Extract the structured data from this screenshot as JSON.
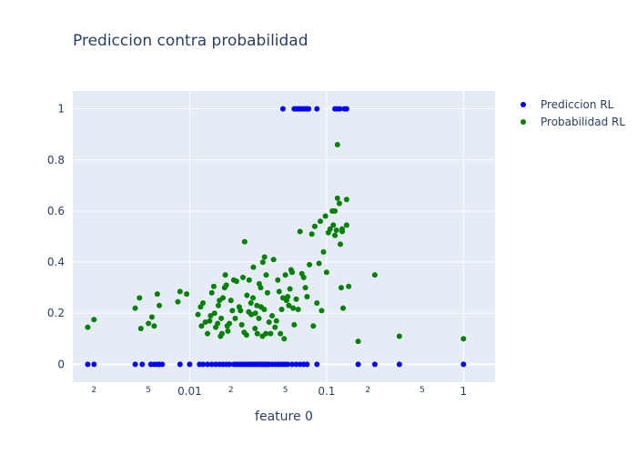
{
  "chart_data": {
    "type": "scatter",
    "title": "Prediccion contra probabilidad",
    "xlabel": "feature 0",
    "ylabel": "",
    "x_scale": "log",
    "xlim": [
      0.0014,
      1.7
    ],
    "ylim": [
      -0.07,
      1.07
    ],
    "x_tick_labels": [
      {
        "value": 0.002,
        "label": "2",
        "minor": true
      },
      {
        "value": 0.005,
        "label": "5",
        "minor": true
      },
      {
        "value": 0.01,
        "label": "0.01",
        "minor": false
      },
      {
        "value": 0.02,
        "label": "2",
        "minor": true
      },
      {
        "value": 0.05,
        "label": "5",
        "minor": true
      },
      {
        "value": 0.1,
        "label": "0.1",
        "minor": false
      },
      {
        "value": 0.2,
        "label": "2",
        "minor": true
      },
      {
        "value": 0.5,
        "label": "5",
        "minor": true
      },
      {
        "value": 1,
        "label": "1",
        "minor": false
      }
    ],
    "y_ticks": [
      0,
      0.2,
      0.4,
      0.6,
      0.8,
      1
    ],
    "y_tick_labels": [
      "0",
      "0.2",
      "0.4",
      "0.6",
      "0.8",
      "1"
    ],
    "grid": true,
    "legend_position": "top-right",
    "series": [
      {
        "name": "Prediccion RL",
        "color": "#0000ff",
        "points": [
          [
            0.0018,
            0
          ],
          [
            0.002,
            0
          ],
          [
            0.004,
            0
          ],
          [
            0.0045,
            0
          ],
          [
            0.0052,
            0
          ],
          [
            0.0055,
            0
          ],
          [
            0.0058,
            0
          ],
          [
            0.006,
            0
          ],
          [
            0.0063,
            0
          ],
          [
            0.0085,
            0
          ],
          [
            0.01,
            0
          ],
          [
            0.0118,
            0
          ],
          [
            0.0125,
            0
          ],
          [
            0.0135,
            0
          ],
          [
            0.0145,
            0
          ],
          [
            0.0155,
            0
          ],
          [
            0.0165,
            0
          ],
          [
            0.0175,
            0
          ],
          [
            0.0185,
            0
          ],
          [
            0.0195,
            0
          ],
          [
            0.021,
            0
          ],
          [
            0.022,
            0
          ],
          [
            0.023,
            0
          ],
          [
            0.024,
            0
          ],
          [
            0.025,
            0
          ],
          [
            0.026,
            0
          ],
          [
            0.027,
            0
          ],
          [
            0.028,
            0
          ],
          [
            0.029,
            0
          ],
          [
            0.03,
            0
          ],
          [
            0.031,
            0
          ],
          [
            0.032,
            0
          ],
          [
            0.033,
            0
          ],
          [
            0.034,
            0
          ],
          [
            0.035,
            0
          ],
          [
            0.036,
            0
          ],
          [
            0.037,
            0
          ],
          [
            0.038,
            0
          ],
          [
            0.04,
            0
          ],
          [
            0.042,
            0
          ],
          [
            0.044,
            0
          ],
          [
            0.046,
            0
          ],
          [
            0.048,
            0
          ],
          [
            0.05,
            0
          ],
          [
            0.052,
            0
          ],
          [
            0.056,
            0
          ],
          [
            0.06,
            0
          ],
          [
            0.064,
            0
          ],
          [
            0.068,
            0
          ],
          [
            0.072,
            0
          ],
          [
            0.085,
            0
          ],
          [
            0.17,
            0
          ],
          [
            0.225,
            0
          ],
          [
            0.34,
            0
          ],
          [
            1.0,
            0
          ],
          [
            0.048,
            1
          ],
          [
            0.058,
            1
          ],
          [
            0.06,
            1
          ],
          [
            0.062,
            1
          ],
          [
            0.064,
            1
          ],
          [
            0.066,
            1
          ],
          [
            0.068,
            1
          ],
          [
            0.07,
            1
          ],
          [
            0.072,
            1
          ],
          [
            0.074,
            1
          ],
          [
            0.085,
            1
          ],
          [
            0.115,
            1
          ],
          [
            0.12,
            1
          ],
          [
            0.125,
            1
          ],
          [
            0.135,
            1
          ],
          [
            0.14,
            1
          ]
        ]
      },
      {
        "name": "Probabilidad RL",
        "color": "#008000",
        "points": [
          [
            0.0018,
            0.145
          ],
          [
            0.002,
            0.175
          ],
          [
            0.004,
            0.22
          ],
          [
            0.0043,
            0.26
          ],
          [
            0.0044,
            0.14
          ],
          [
            0.005,
            0.16
          ],
          [
            0.0053,
            0.185
          ],
          [
            0.0055,
            0.15
          ],
          [
            0.0058,
            0.275
          ],
          [
            0.006,
            0.23
          ],
          [
            0.0082,
            0.245
          ],
          [
            0.0085,
            0.285
          ],
          [
            0.0095,
            0.275
          ],
          [
            0.0115,
            0.195
          ],
          [
            0.012,
            0.225
          ],
          [
            0.0122,
            0.15
          ],
          [
            0.0125,
            0.24
          ],
          [
            0.013,
            0.165
          ],
          [
            0.0135,
            0.12
          ],
          [
            0.014,
            0.17
          ],
          [
            0.0142,
            0.19
          ],
          [
            0.0145,
            0.28
          ],
          [
            0.015,
            0.305
          ],
          [
            0.0152,
            0.2
          ],
          [
            0.0155,
            0.145
          ],
          [
            0.016,
            0.16
          ],
          [
            0.0162,
            0.23
          ],
          [
            0.0165,
            0.25
          ],
          [
            0.0168,
            0.11
          ],
          [
            0.017,
            0.18
          ],
          [
            0.0172,
            0.12
          ],
          [
            0.0175,
            0.26
          ],
          [
            0.018,
            0.3
          ],
          [
            0.0182,
            0.35
          ],
          [
            0.0185,
            0.31
          ],
          [
            0.0188,
            0.15
          ],
          [
            0.019,
            0.13
          ],
          [
            0.0195,
            0.16
          ],
          [
            0.02,
            0.25
          ],
          [
            0.0205,
            0.21
          ],
          [
            0.021,
            0.33
          ],
          [
            0.0215,
            0.18
          ],
          [
            0.022,
            0.325
          ],
          [
            0.023,
            0.225
          ],
          [
            0.0235,
            0.21
          ],
          [
            0.024,
            0.155
          ],
          [
            0.0245,
            0.34
          ],
          [
            0.025,
            0.125
          ],
          [
            0.0252,
            0.48
          ],
          [
            0.026,
            0.115
          ],
          [
            0.0262,
            0.27
          ],
          [
            0.027,
            0.205
          ],
          [
            0.0272,
            0.33
          ],
          [
            0.028,
            0.24
          ],
          [
            0.0282,
            0.195
          ],
          [
            0.029,
            0.26
          ],
          [
            0.0292,
            0.38
          ],
          [
            0.03,
            0.14
          ],
          [
            0.0302,
            0.2
          ],
          [
            0.031,
            0.23
          ],
          [
            0.0312,
            0.12
          ],
          [
            0.032,
            0.18
          ],
          [
            0.0322,
            0.315
          ],
          [
            0.033,
            0.3
          ],
          [
            0.0332,
            0.225
          ],
          [
            0.034,
            0.11
          ],
          [
            0.0342,
            0.4
          ],
          [
            0.035,
            0.215
          ],
          [
            0.0352,
            0.42
          ],
          [
            0.036,
            0.12
          ],
          [
            0.0362,
            0.35
          ],
          [
            0.037,
            0.28
          ],
          [
            0.038,
            0.165
          ],
          [
            0.039,
            0.12
          ],
          [
            0.04,
            0.19
          ],
          [
            0.041,
            0.41
          ],
          [
            0.042,
            0.145
          ],
          [
            0.043,
            0.17
          ],
          [
            0.044,
            0.33
          ],
          [
            0.045,
            0.285
          ],
          [
            0.046,
            0.12
          ],
          [
            0.047,
            0.215
          ],
          [
            0.048,
            0.26
          ],
          [
            0.049,
            0.1
          ],
          [
            0.05,
            0.35
          ],
          [
            0.051,
            0.25
          ],
          [
            0.052,
            0.265
          ],
          [
            0.053,
            0.23
          ],
          [
            0.054,
            0.295
          ],
          [
            0.055,
            0.37
          ],
          [
            0.056,
            0.36
          ],
          [
            0.057,
            0.22
          ],
          [
            0.058,
            0.155
          ],
          [
            0.06,
            0.255
          ],
          [
            0.062,
            0.215
          ],
          [
            0.064,
            0.52
          ],
          [
            0.066,
            0.355
          ],
          [
            0.068,
            0.34
          ],
          [
            0.07,
            0.3
          ],
          [
            0.072,
            0.265
          ],
          [
            0.075,
            0.39
          ],
          [
            0.078,
            0.51
          ],
          [
            0.08,
            0.15
          ],
          [
            0.082,
            0.54
          ],
          [
            0.085,
            0.24
          ],
          [
            0.088,
            0.395
          ],
          [
            0.09,
            0.56
          ],
          [
            0.092,
            0.21
          ],
          [
            0.095,
            0.44
          ],
          [
            0.098,
            0.58
          ],
          [
            0.1,
            0.36
          ],
          [
            0.103,
            0.515
          ],
          [
            0.106,
            0.53
          ],
          [
            0.11,
            0.6
          ],
          [
            0.112,
            0.545
          ],
          [
            0.115,
            0.505
          ],
          [
            0.118,
            0.525
          ],
          [
            0.12,
            0.65
          ],
          [
            0.124,
            0.63
          ],
          [
            0.126,
            0.47
          ],
          [
            0.128,
            0.3
          ],
          [
            0.13,
            0.52
          ],
          [
            0.132,
            0.22
          ],
          [
            0.14,
            0.545
          ],
          [
            0.145,
            0.305
          ],
          [
            0.115,
            0.6
          ],
          [
            0.12,
            0.86
          ],
          [
            0.13,
            0.53
          ],
          [
            0.14,
            0.645
          ],
          [
            0.17,
            0.09
          ],
          [
            0.225,
            0.35
          ],
          [
            0.34,
            0.11
          ],
          [
            1.0,
            0.1
          ]
        ]
      }
    ]
  }
}
